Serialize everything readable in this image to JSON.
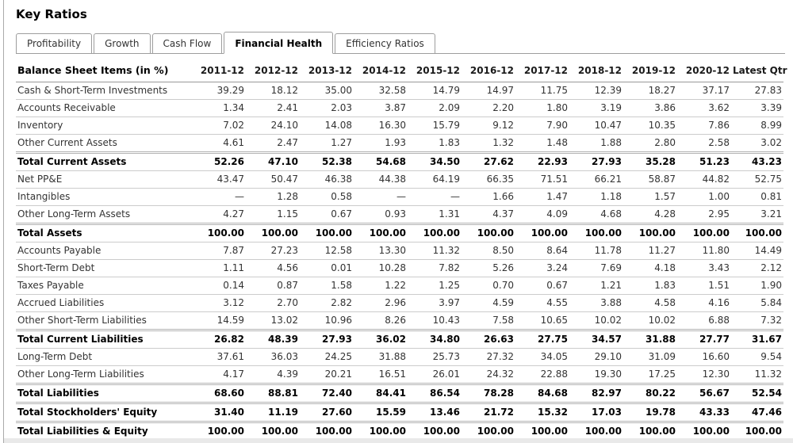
{
  "page_title": "Key Ratios",
  "tabs": [
    {
      "label": "Profitability",
      "active": false
    },
    {
      "label": "Growth",
      "active": false
    },
    {
      "label": "Cash Flow",
      "active": false
    },
    {
      "label": "Financial Health",
      "active": true
    },
    {
      "label": "Efficiency Ratios",
      "active": false
    }
  ],
  "table": {
    "header_label": "Balance Sheet Items (in %)",
    "columns": [
      "2011-12",
      "2012-12",
      "2013-12",
      "2014-12",
      "2015-12",
      "2016-12",
      "2017-12",
      "2018-12",
      "2019-12",
      "2020-12",
      "Latest Qtr"
    ],
    "rows": [
      {
        "label": "Cash & Short-Term Investments",
        "bold": false,
        "values": [
          "39.29",
          "18.12",
          "35.00",
          "32.58",
          "14.79",
          "14.97",
          "11.75",
          "12.39",
          "18.27",
          "37.17",
          "27.83"
        ]
      },
      {
        "label": "Accounts Receivable",
        "bold": false,
        "values": [
          "1.34",
          "2.41",
          "2.03",
          "3.87",
          "2.09",
          "2.20",
          "1.80",
          "3.19",
          "3.86",
          "3.62",
          "3.39"
        ]
      },
      {
        "label": "Inventory",
        "bold": false,
        "values": [
          "7.02",
          "24.10",
          "14.08",
          "16.30",
          "15.79",
          "9.12",
          "7.90",
          "10.47",
          "10.35",
          "7.86",
          "8.99"
        ]
      },
      {
        "label": "Other Current Assets",
        "bold": false,
        "values": [
          "4.61",
          "2.47",
          "1.27",
          "1.93",
          "1.83",
          "1.32",
          "1.48",
          "1.88",
          "2.80",
          "2.58",
          "3.02"
        ]
      },
      {
        "label": "Total Current Assets",
        "bold": true,
        "values": [
          "52.26",
          "47.10",
          "52.38",
          "54.68",
          "34.50",
          "27.62",
          "22.93",
          "27.93",
          "35.28",
          "51.23",
          "43.23"
        ]
      },
      {
        "label": "Net PP&E",
        "bold": false,
        "values": [
          "43.47",
          "50.47",
          "46.38",
          "44.38",
          "64.19",
          "66.35",
          "71.51",
          "66.21",
          "58.87",
          "44.82",
          "52.75"
        ]
      },
      {
        "label": "Intangibles",
        "bold": false,
        "values": [
          "—",
          "1.28",
          "0.58",
          "—",
          "—",
          "1.66",
          "1.47",
          "1.18",
          "1.57",
          "1.00",
          "0.81"
        ]
      },
      {
        "label": "Other Long-Term Assets",
        "bold": false,
        "values": [
          "4.27",
          "1.15",
          "0.67",
          "0.93",
          "1.31",
          "4.37",
          "4.09",
          "4.68",
          "4.28",
          "2.95",
          "3.21"
        ]
      },
      {
        "label": "Total Assets",
        "bold": true,
        "values": [
          "100.00",
          "100.00",
          "100.00",
          "100.00",
          "100.00",
          "100.00",
          "100.00",
          "100.00",
          "100.00",
          "100.00",
          "100.00"
        ]
      },
      {
        "label": "Accounts Payable",
        "bold": false,
        "values": [
          "7.87",
          "27.23",
          "12.58",
          "13.30",
          "11.32",
          "8.50",
          "8.64",
          "11.78",
          "11.27",
          "11.80",
          "14.49"
        ]
      },
      {
        "label": "Short-Term Debt",
        "bold": false,
        "values": [
          "1.11",
          "4.56",
          "0.01",
          "10.28",
          "7.82",
          "5.26",
          "3.24",
          "7.69",
          "4.18",
          "3.43",
          "2.12"
        ]
      },
      {
        "label": "Taxes Payable",
        "bold": false,
        "values": [
          "0.14",
          "0.87",
          "1.58",
          "1.22",
          "1.25",
          "0.70",
          "0.67",
          "1.21",
          "1.83",
          "1.51",
          "1.90"
        ]
      },
      {
        "label": "Accrued Liabilities",
        "bold": false,
        "values": [
          "3.12",
          "2.70",
          "2.82",
          "2.96",
          "3.97",
          "4.59",
          "4.55",
          "3.88",
          "4.58",
          "4.16",
          "5.84"
        ]
      },
      {
        "label": "Other Short-Term Liabilities",
        "bold": false,
        "values": [
          "14.59",
          "13.02",
          "10.96",
          "8.26",
          "10.43",
          "7.58",
          "10.65",
          "10.02",
          "10.02",
          "6.88",
          "7.32"
        ]
      },
      {
        "label": "Total Current Liabilities",
        "bold": true,
        "values": [
          "26.82",
          "48.39",
          "27.93",
          "36.02",
          "34.80",
          "26.63",
          "27.75",
          "34.57",
          "31.88",
          "27.77",
          "31.67"
        ]
      },
      {
        "label": "Long-Term Debt",
        "bold": false,
        "values": [
          "37.61",
          "36.03",
          "24.25",
          "31.88",
          "25.73",
          "27.32",
          "34.05",
          "29.10",
          "31.09",
          "16.60",
          "9.54"
        ]
      },
      {
        "label": "Other Long-Term Liabilities",
        "bold": false,
        "values": [
          "4.17",
          "4.39",
          "20.21",
          "16.51",
          "26.01",
          "24.32",
          "22.88",
          "19.30",
          "17.25",
          "12.30",
          "11.32"
        ]
      },
      {
        "label": "Total Liabilities",
        "bold": true,
        "values": [
          "68.60",
          "88.81",
          "72.40",
          "84.41",
          "86.54",
          "78.28",
          "84.68",
          "82.97",
          "80.22",
          "56.67",
          "52.54"
        ]
      },
      {
        "label": "Total Stockholders' Equity",
        "bold": true,
        "values": [
          "31.40",
          "11.19",
          "27.60",
          "15.59",
          "13.46",
          "21.72",
          "15.32",
          "17.03",
          "19.78",
          "43.33",
          "47.46"
        ]
      },
      {
        "label": "Total Liabilities & Equity",
        "bold": true,
        "values": [
          "100.00",
          "100.00",
          "100.00",
          "100.00",
          "100.00",
          "100.00",
          "100.00",
          "100.00",
          "100.00",
          "100.00",
          "100.00"
        ]
      }
    ]
  },
  "colors": {
    "tab_border": "#9d9d9d",
    "row_separator": "#cccccc",
    "total_double_line": "#b3b3b3",
    "text": "#333333",
    "bold_text": "#000000",
    "scrollbar_track": "#e9e9e9"
  }
}
